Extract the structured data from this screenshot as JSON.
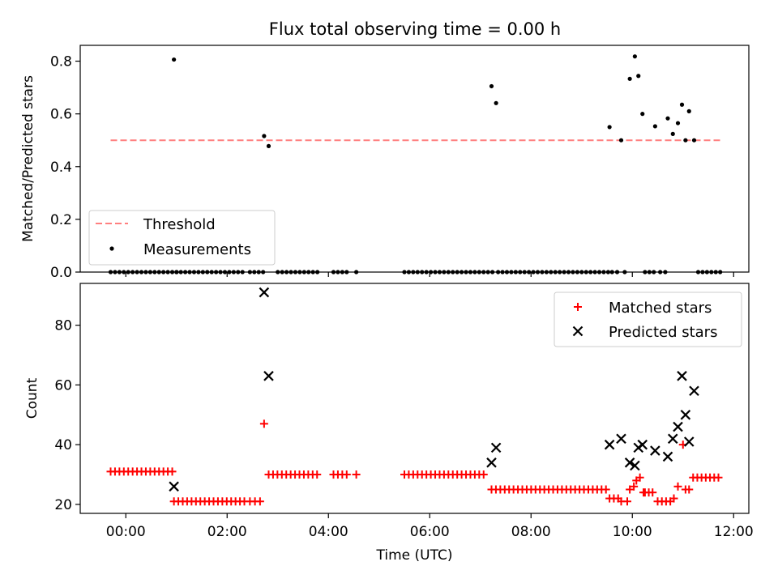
{
  "title": "Flux total observing time = 0.00 h",
  "chart_data": [
    {
      "type": "scatter",
      "ylabel": "Matched/Predicted stars",
      "ylim": [
        0.0,
        0.86
      ],
      "yticks": [
        0.0,
        0.2,
        0.4,
        0.6,
        0.8
      ],
      "ytick_labels": [
        "0.0",
        "0.2",
        "0.4",
        "0.6",
        "0.8"
      ],
      "xlim": [
        "-0.9",
        "12.3"
      ],
      "legend_placement": "lower-left",
      "threshold": {
        "name": "Threshold",
        "y": 0.5,
        "x": [
          -0.3,
          11.75
        ],
        "color": "#ff7f7f"
      },
      "series": [
        {
          "name": "Measurements",
          "color": "#000000",
          "points": [
            [
              0.95,
              0.806
            ],
            [
              2.73,
              0.516
            ],
            [
              2.82,
              0.478
            ],
            [
              7.22,
              0.705
            ],
            [
              7.31,
              0.641
            ],
            [
              9.55,
              0.55
            ],
            [
              9.78,
              0.5
            ],
            [
              9.95,
              0.733
            ],
            [
              10.05,
              0.818
            ],
            [
              10.12,
              0.744
            ],
            [
              10.2,
              0.6
            ],
            [
              10.45,
              0.553
            ],
            [
              10.7,
              0.583
            ],
            [
              10.8,
              0.524
            ],
            [
              10.9,
              0.565
            ],
            [
              10.98,
              0.635
            ],
            [
              11.05,
              0.5
            ],
            [
              11.12,
              0.61
            ],
            [
              11.22,
              0.5
            ]
          ],
          "zero_ranges": [
            [
              -0.3,
              1.0,
              0.0869
            ],
            [
              1.0,
              2.3,
              0.0869
            ],
            [
              2.45,
              2.7,
              0.0869
            ],
            [
              3.0,
              3.75,
              0.0869
            ],
            [
              4.1,
              4.35,
              0.0869
            ],
            [
              4.55,
              4.6,
              0.1
            ],
            [
              5.5,
              7.2,
              0.0869
            ],
            [
              7.35,
              9.5,
              0.0869
            ],
            [
              9.6,
              9.7,
              0.1
            ],
            [
              9.85,
              9.85,
              0.1
            ],
            [
              10.25,
              10.4,
              0.0869
            ],
            [
              10.55,
              10.65,
              0.1
            ],
            [
              11.3,
              11.7,
              0.0869
            ]
          ]
        }
      ]
    },
    {
      "type": "scatter",
      "xlabel": "Time (UTC)",
      "ylabel": "Count",
      "ylim": [
        17,
        94
      ],
      "yticks": [
        20,
        40,
        60,
        80
      ],
      "ytick_labels": [
        "20",
        "40",
        "60",
        "80"
      ],
      "xlim": [
        "-0.9",
        "12.3"
      ],
      "xticks": [
        0,
        2,
        4,
        6,
        8,
        10,
        12
      ],
      "xtick_labels": [
        "00:00",
        "02:00",
        "04:00",
        "06:00",
        "08:00",
        "10:00",
        "12:00"
      ],
      "legend_placement": "upper-right",
      "series": [
        {
          "name": "Matched stars",
          "marker": "plus",
          "color": "#ff0000",
          "ranges": [
            [
              -0.3,
              0.95,
              31,
              0.0869
            ],
            [
              0.95,
              2.3,
              21,
              0.0869
            ],
            [
              2.45,
              2.65,
              21,
              0.1
            ],
            [
              2.82,
              3.75,
              30,
              0.0869
            ],
            [
              4.1,
              4.35,
              30,
              0.0869
            ],
            [
              4.55,
              4.6,
              30,
              0.1
            ],
            [
              5.5,
              7.1,
              30,
              0.0869
            ],
            [
              7.22,
              9.5,
              25,
              0.0869
            ],
            [
              9.55,
              9.72,
              22,
              0.085
            ],
            [
              9.78,
              9.9,
              21,
              0.12
            ],
            [
              10.25,
              10.4,
              24,
              0.075
            ],
            [
              10.5,
              10.75,
              21,
              0.0833
            ],
            [
              11.2,
              11.7,
              29,
              0.0833
            ]
          ],
          "points": [
            [
              2.73,
              47
            ],
            [
              9.95,
              25
            ],
            [
              10.03,
              26
            ],
            [
              10.08,
              28
            ],
            [
              10.15,
              29
            ],
            [
              10.22,
              24
            ],
            [
              10.82,
              22
            ],
            [
              10.9,
              26
            ],
            [
              11.0,
              40
            ],
            [
              11.05,
              25
            ],
            [
              11.12,
              25
            ]
          ]
        },
        {
          "name": "Predicted stars",
          "marker": "x",
          "color": "#000000",
          "points": [
            [
              0.95,
              26
            ],
            [
              2.73,
              91
            ],
            [
              2.82,
              63
            ],
            [
              7.22,
              34
            ],
            [
              7.31,
              39
            ],
            [
              9.55,
              40
            ],
            [
              9.78,
              42
            ],
            [
              9.95,
              34
            ],
            [
              10.05,
              33
            ],
            [
              10.12,
              39
            ],
            [
              10.2,
              40
            ],
            [
              10.45,
              38
            ],
            [
              10.7,
              36
            ],
            [
              10.8,
              42
            ],
            [
              10.9,
              46
            ],
            [
              10.98,
              63
            ],
            [
              11.05,
              50
            ],
            [
              11.12,
              41
            ],
            [
              11.22,
              58
            ]
          ]
        }
      ]
    }
  ]
}
